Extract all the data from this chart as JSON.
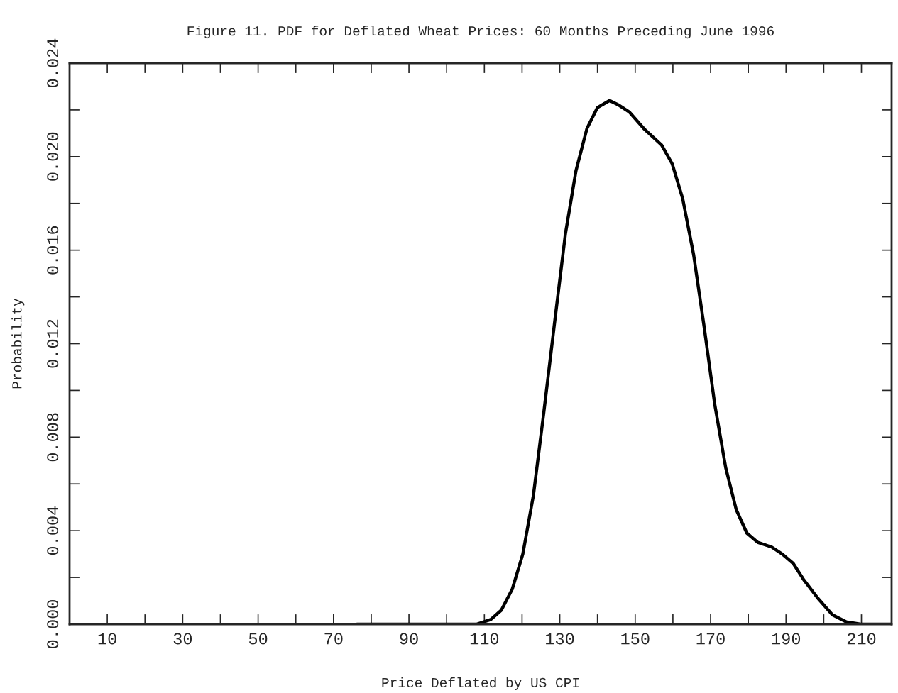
{
  "chart_data": {
    "type": "line",
    "title": "Figure 11. PDF for Deflated Wheat Prices: 60 Months Preceding June 1996",
    "xlabel": "Price Deflated by US CPI",
    "ylabel": "Probability",
    "x": [
      76.2,
      107.9,
      111.7,
      114.5,
      117.4,
      120.2,
      123,
      125.8,
      128.7,
      131.5,
      134.3,
      137.2,
      140,
      143.2,
      145.7,
      148.5,
      152.3,
      157,
      159.8,
      162.6,
      165.5,
      168.3,
      171.1,
      174,
      176.8,
      179.6,
      182.5,
      186.2,
      189,
      191.9,
      194.7,
      198.5,
      202.3,
      206,
      209.8,
      218
    ],
    "series": [
      {
        "color": "#000000",
        "values": [
          0,
          0,
          0.0002,
          0.0006,
          0.0015,
          0.003,
          0.0055,
          0.0091,
          0.013,
          0.0167,
          0.0194,
          0.0212,
          0.0221,
          0.0224,
          0.0222,
          0.0219,
          0.0212,
          0.0205,
          0.0197,
          0.0182,
          0.0158,
          0.0127,
          0.0094,
          0.0067,
          0.0049,
          0.0039,
          0.0035,
          0.0033,
          0.003,
          0.0026,
          0.0019,
          0.0011,
          0.0004,
          0.0001,
          0,
          0
        ]
      }
    ],
    "xlim": [
      0,
      218
    ],
    "xticks": [
      10,
      {
        "value": 20,
        "label": null
      },
      30,
      {
        "value": 40,
        "label": null
      },
      50,
      {
        "value": 60,
        "label": null
      },
      70,
      {
        "value": 80,
        "label": null
      },
      90,
      {
        "value": 100,
        "label": null
      },
      110,
      {
        "value": 120,
        "label": null
      },
      130,
      {
        "value": 140,
        "label": null
      },
      150,
      {
        "value": 160,
        "label": null
      },
      170,
      {
        "value": 180,
        "label": null
      },
      190,
      {
        "value": 200,
        "label": null
      },
      210
    ],
    "ylim": [
      0,
      0.024
    ],
    "yticks": [
      {
        "value": 0,
        "label": "0.000"
      },
      {
        "value": 0.002,
        "label": null
      },
      {
        "value": 0.004,
        "label": "0.004"
      },
      {
        "value": 0.006,
        "label": null
      },
      {
        "value": 0.008,
        "label": "0.008"
      },
      {
        "value": 0.01,
        "label": null
      },
      {
        "value": 0.012,
        "label": "0.012"
      },
      {
        "value": 0.014,
        "label": null
      },
      {
        "value": 0.016,
        "label": "0.016"
      },
      {
        "value": 0.018,
        "label": null
      },
      {
        "value": 0.02,
        "label": "0.020"
      },
      {
        "value": 0.022,
        "label": null
      },
      {
        "value": 0.024,
        "label": "0.024"
      }
    ],
    "grid": false,
    "legend": false,
    "marker": "none",
    "line_style": "solid"
  }
}
